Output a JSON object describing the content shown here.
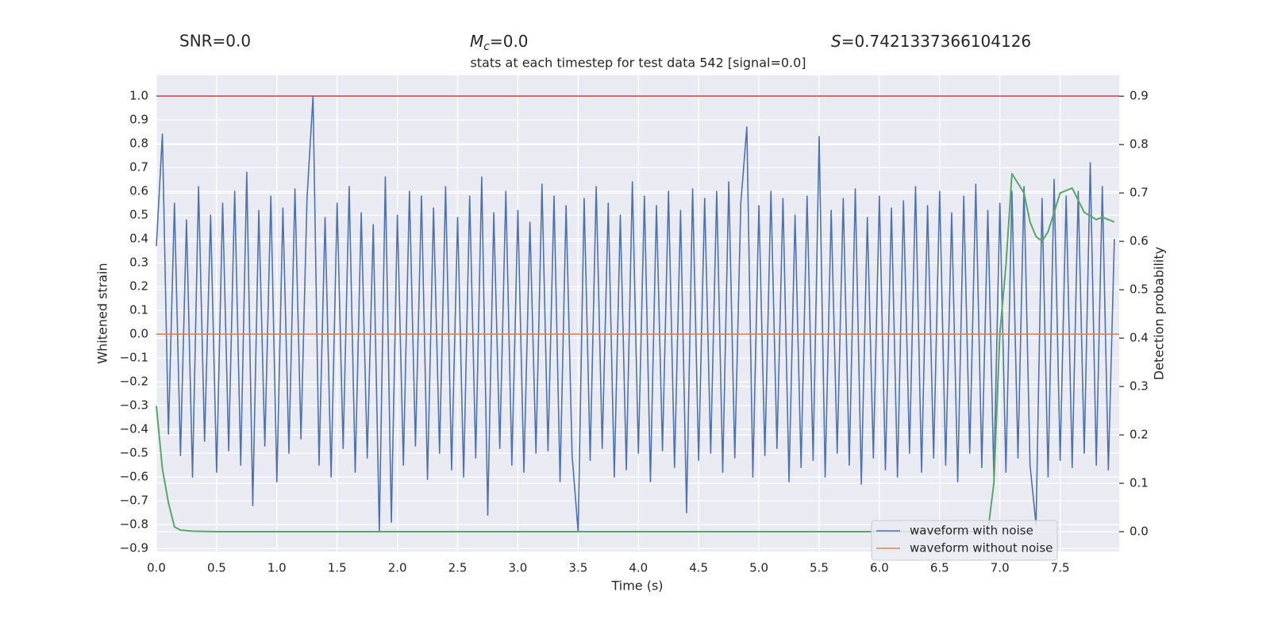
{
  "chart_data": {
    "type": "line",
    "header": {
      "snr": "SNR=0.0",
      "mc_symbol": "M",
      "mc_subscript": "c",
      "mc_value": "=0.0",
      "s_symbol": "S",
      "s_value": "=0.7421337366104126"
    },
    "title": "stats at each timestep for test data 542 [signal=0.0]",
    "xlabel": "Time (s)",
    "ylabel": "Whitened strain",
    "y2label": "Detection probability",
    "xlim": [
      0,
      7.99
    ],
    "ylim": [
      -0.913,
      1.087
    ],
    "y2lim": [
      -0.041,
      0.943
    ],
    "grid": true,
    "legend": "lower right",
    "xticks": [
      {
        "value": 0,
        "label": "0.0"
      },
      {
        "value": 0.5,
        "label": "0.5"
      },
      {
        "value": 1,
        "label": "1.0"
      },
      {
        "value": 1.5,
        "label": "1.5"
      },
      {
        "value": 2,
        "label": "2.0"
      },
      {
        "value": 2.5,
        "label": "2.5"
      },
      {
        "value": 3,
        "label": "3.0"
      },
      {
        "value": 3.5,
        "label": "3.5"
      },
      {
        "value": 4,
        "label": "4.0"
      },
      {
        "value": 4.5,
        "label": "4.5"
      },
      {
        "value": 5,
        "label": "5.0"
      },
      {
        "value": 5.5,
        "label": "5.5"
      },
      {
        "value": 6,
        "label": "6.0"
      },
      {
        "value": 6.5,
        "label": "6.5"
      },
      {
        "value": 7,
        "label": "7.0"
      },
      {
        "value": 7.5,
        "label": "7.5"
      }
    ],
    "yticks": [
      {
        "value": -0.9,
        "label": "−0.9"
      },
      {
        "value": -0.8,
        "label": "−0.8"
      },
      {
        "value": -0.7,
        "label": "−0.7"
      },
      {
        "value": -0.6,
        "label": "−0.6"
      },
      {
        "value": -0.5,
        "label": "−0.5"
      },
      {
        "value": -0.4,
        "label": "−0.4"
      },
      {
        "value": -0.3,
        "label": "−0.3"
      },
      {
        "value": -0.2,
        "label": "−0.2"
      },
      {
        "value": -0.1,
        "label": "−0.1"
      },
      {
        "value": 0,
        "label": "0.0"
      },
      {
        "value": 0.1,
        "label": "0.1"
      },
      {
        "value": 0.2,
        "label": "0.2"
      },
      {
        "value": 0.3,
        "label": "0.3"
      },
      {
        "value": 0.4,
        "label": "0.4"
      },
      {
        "value": 0.5,
        "label": "0.5"
      },
      {
        "value": 0.6,
        "label": "0.6"
      },
      {
        "value": 0.7,
        "label": "0.7"
      },
      {
        "value": 0.8,
        "label": "0.8"
      },
      {
        "value": 0.9,
        "label": "0.9"
      },
      {
        "value": 1,
        "label": "1.0"
      }
    ],
    "y2ticks": [
      {
        "value": 0,
        "label": "0.0"
      },
      {
        "value": 0.1,
        "label": "0.1"
      },
      {
        "value": 0.2,
        "label": "0.2"
      },
      {
        "value": 0.3,
        "label": "0.3"
      },
      {
        "value": 0.4,
        "label": "0.4"
      },
      {
        "value": 0.5,
        "label": "0.5"
      },
      {
        "value": 0.6,
        "label": "0.6"
      },
      {
        "value": 0.7,
        "label": "0.7"
      },
      {
        "value": 0.8,
        "label": "0.8"
      },
      {
        "value": 0.9,
        "label": "0.9"
      }
    ],
    "hline": {
      "value": 1.0,
      "color": "#c44e52"
    },
    "series": [
      {
        "name": "waveform with noise",
        "color": "#4c72b0",
        "x": [
          0,
          0.05,
          0.1,
          0.15,
          0.2,
          0.25,
          0.3,
          0.35,
          0.4,
          0.45,
          0.5,
          0.55,
          0.6,
          0.65,
          0.7,
          0.75,
          0.8,
          0.85,
          0.9,
          0.95,
          1,
          1.05,
          1.1,
          1.15,
          1.2,
          1.25,
          1.3,
          1.35,
          1.4,
          1.45,
          1.5,
          1.55,
          1.6,
          1.65,
          1.7,
          1.75,
          1.8,
          1.85,
          1.9,
          1.95,
          2,
          2.05,
          2.1,
          2.15,
          2.2,
          2.25,
          2.3,
          2.35,
          2.4,
          2.45,
          2.5,
          2.55,
          2.6,
          2.65,
          2.7,
          2.75,
          2.8,
          2.85,
          2.9,
          2.95,
          3,
          3.05,
          3.1,
          3.15,
          3.2,
          3.25,
          3.3,
          3.35,
          3.4,
          3.45,
          3.5,
          3.55,
          3.6,
          3.65,
          3.7,
          3.75,
          3.8,
          3.85,
          3.9,
          3.95,
          4,
          4.05,
          4.1,
          4.15,
          4.2,
          4.25,
          4.3,
          4.35,
          4.4,
          4.45,
          4.5,
          4.55,
          4.6,
          4.65,
          4.7,
          4.75,
          4.8,
          4.85,
          4.9,
          4.95,
          5,
          5.05,
          5.1,
          5.15,
          5.2,
          5.25,
          5.3,
          5.35,
          5.4,
          5.45,
          5.5,
          5.55,
          5.6,
          5.65,
          5.7,
          5.75,
          5.8,
          5.85,
          5.9,
          5.95,
          6,
          6.05,
          6.1,
          6.15,
          6.2,
          6.25,
          6.3,
          6.35,
          6.4,
          6.45,
          6.5,
          6.55,
          6.6,
          6.65,
          6.7,
          6.75,
          6.8,
          6.85,
          6.9,
          6.95,
          7,
          7.05,
          7.1,
          7.15,
          7.2,
          7.25,
          7.3,
          7.35,
          7.4,
          7.45,
          7.5,
          7.55,
          7.6,
          7.65,
          7.7,
          7.75,
          7.8,
          7.85,
          7.9,
          7.95
        ],
        "values": [
          0.37,
          0.84,
          -0.42,
          0.55,
          -0.51,
          0.48,
          -0.6,
          0.62,
          -0.45,
          0.5,
          -0.58,
          0.55,
          -0.49,
          0.6,
          -0.55,
          0.68,
          -0.72,
          0.52,
          -0.47,
          0.58,
          -0.62,
          0.53,
          -0.5,
          0.61,
          -0.44,
          0.57,
          1.0,
          -0.55,
          0.49,
          -0.6,
          0.55,
          -0.48,
          0.62,
          -0.58,
          0.51,
          -0.52,
          0.46,
          -0.83,
          0.66,
          -0.79,
          0.5,
          -0.55,
          0.6,
          -0.47,
          0.58,
          -0.61,
          0.53,
          -0.5,
          0.62,
          -0.57,
          0.49,
          -0.6,
          0.58,
          -0.52,
          0.66,
          -0.76,
          0.51,
          -0.48,
          0.6,
          -0.55,
          0.52,
          -0.58,
          0.47,
          -0.5,
          0.63,
          -0.49,
          0.58,
          -0.62,
          0.54,
          -0.51,
          -0.83,
          0.57,
          -0.53,
          0.62,
          -0.48,
          0.55,
          -0.6,
          0.5,
          -0.57,
          0.64,
          -0.5,
          0.58,
          -0.62,
          0.54,
          -0.49,
          0.6,
          -0.56,
          0.52,
          -0.75,
          0.61,
          -0.53,
          0.57,
          -0.5,
          0.6,
          -0.58,
          0.64,
          -0.52,
          0.55,
          0.87,
          -0.6,
          0.54,
          -0.51,
          0.6,
          -0.48,
          0.57,
          -0.62,
          0.5,
          -0.56,
          0.58,
          -0.53,
          0.83,
          -0.6,
          0.52,
          -0.5,
          0.57,
          -0.55,
          0.61,
          -0.63,
          0.49,
          -0.52,
          0.58,
          -0.57,
          0.53,
          -0.6,
          0.56,
          -0.5,
          0.62,
          -0.58,
          0.54,
          -0.52,
          0.6,
          -0.55,
          0.51,
          -0.62,
          0.58,
          -0.5,
          0.63,
          -0.56,
          0.52,
          -0.6,
          0.55,
          -0.58,
          0.6,
          -0.52,
          0.62,
          -0.55,
          -0.8,
          0.57,
          -0.6,
          0.65,
          -0.53,
          0.58,
          -0.56,
          0.6,
          -0.5,
          0.72,
          -0.55,
          0.62,
          -0.57,
          0.4
        ]
      },
      {
        "name": "waveform without noise",
        "color": "#dd8452",
        "x": [
          0,
          7.99
        ],
        "values": [
          0,
          0
        ]
      }
    ],
    "probability": {
      "color": "#55a868",
      "axis": "y2",
      "x": [
        0,
        0.05,
        0.1,
        0.15,
        0.2,
        0.3,
        0.5,
        1,
        2,
        3,
        4,
        5,
        6,
        6.9,
        6.95,
        7,
        7.05,
        7.1,
        7.15,
        7.2,
        7.25,
        7.3,
        7.35,
        7.4,
        7.5,
        7.6,
        7.7,
        7.8,
        7.85,
        7.95
      ],
      "values": [
        0.26,
        0.13,
        0.06,
        0.01,
        0.003,
        0.001,
        0,
        0,
        0,
        0,
        0,
        0,
        0,
        0,
        0.1,
        0.41,
        0.55,
        0.74,
        0.72,
        0.7,
        0.64,
        0.61,
        0.6,
        0.62,
        0.7,
        0.71,
        0.66,
        0.645,
        0.65,
        0.64
      ]
    }
  }
}
